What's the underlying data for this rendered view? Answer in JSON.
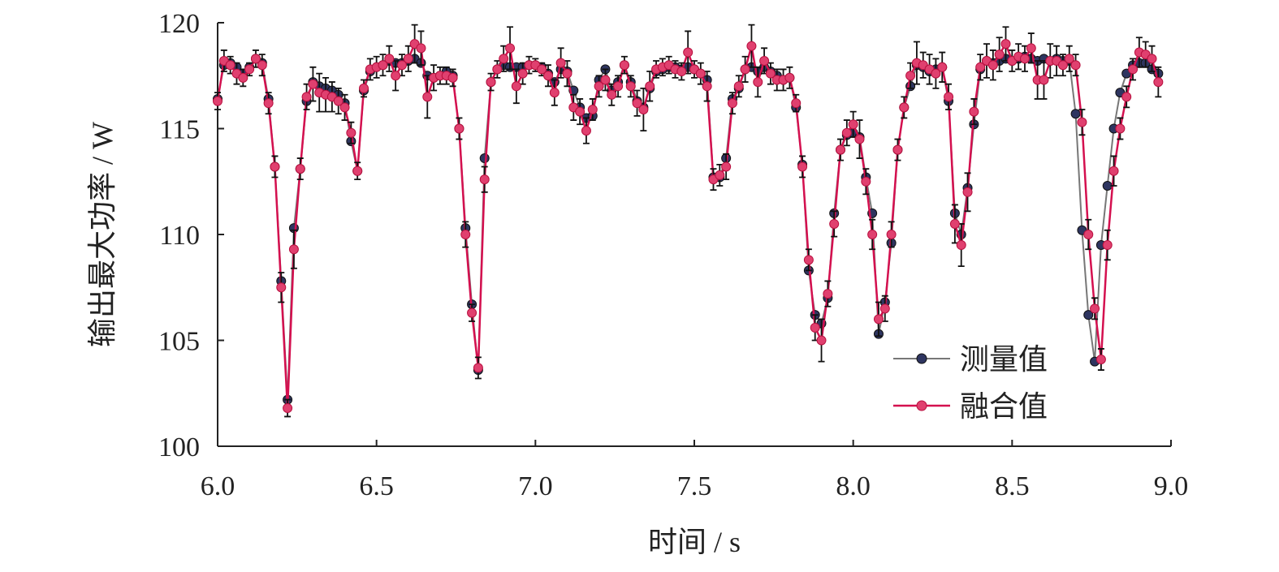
{
  "chart_data": {
    "type": "line",
    "x_label": "时间 / s",
    "y_label": "输出最大功率 / W",
    "xlim": [
      6,
      9
    ],
    "ylim": [
      100,
      120
    ],
    "xticks": [
      {
        "value": 6,
        "label": "6.0"
      },
      {
        "value": 6.5,
        "label": "6.5"
      },
      {
        "value": 7,
        "label": "7.0"
      },
      {
        "value": 7.5,
        "label": "7.5"
      },
      {
        "value": 8,
        "label": "8.0"
      },
      {
        "value": 8.5,
        "label": "8.5"
      },
      {
        "value": 9,
        "label": "9.0"
      }
    ],
    "yticks": [
      100,
      105,
      110,
      115,
      120
    ],
    "grid": false,
    "legend": "lower right",
    "x": [
      6.0,
      6.02,
      6.04,
      6.06,
      6.08,
      6.1,
      6.12,
      6.14,
      6.16,
      6.18,
      6.2,
      6.22,
      6.24,
      6.26,
      6.28,
      6.3,
      6.32,
      6.34,
      6.36,
      6.38,
      6.4,
      6.42,
      6.44,
      6.46,
      6.48,
      6.5,
      6.52,
      6.54,
      6.56,
      6.58,
      6.6,
      6.62,
      6.64,
      6.66,
      6.68,
      6.7,
      6.72,
      6.74,
      6.76,
      6.78,
      6.8,
      6.82,
      6.84,
      6.86,
      6.88,
      6.9,
      6.92,
      6.94,
      6.96,
      6.98,
      7.0,
      7.02,
      7.04,
      7.06,
      7.08,
      7.1,
      7.12,
      7.14,
      7.16,
      7.18,
      7.2,
      7.22,
      7.24,
      7.26,
      7.28,
      7.3,
      7.32,
      7.34,
      7.36,
      7.38,
      7.4,
      7.42,
      7.44,
      7.46,
      7.48,
      7.5,
      7.52,
      7.54,
      7.56,
      7.58,
      7.6,
      7.62,
      7.64,
      7.66,
      7.68,
      7.7,
      7.72,
      7.74,
      7.76,
      7.78,
      7.8,
      7.82,
      7.84,
      7.86,
      7.88,
      7.9,
      7.92,
      7.94,
      7.96,
      7.98,
      8.0,
      8.02,
      8.04,
      8.06,
      8.08,
      8.1,
      8.12,
      8.14,
      8.16,
      8.18,
      8.2,
      8.22,
      8.24,
      8.26,
      8.28,
      8.3,
      8.32,
      8.34,
      8.36,
      8.38,
      8.4,
      8.42,
      8.44,
      8.46,
      8.48,
      8.5,
      8.52,
      8.54,
      8.56,
      8.58,
      8.6,
      8.62,
      8.64,
      8.66,
      8.68,
      8.7,
      8.72,
      8.74,
      8.76,
      8.78,
      8.8,
      8.82,
      8.84,
      8.86,
      8.88,
      8.9,
      8.92,
      8.94,
      8.96
    ],
    "series": [
      {
        "name": "测量值",
        "color": "#2e3560",
        "line_color": "#777777",
        "values": [
          116.4,
          118.0,
          118.1,
          117.9,
          117.6,
          117.9,
          118.3,
          118.1,
          116.4,
          113.2,
          107.8,
          102.2,
          110.3,
          113.1,
          116.3,
          117.2,
          117.0,
          116.9,
          116.8,
          116.6,
          116.2,
          114.4,
          113.0,
          116.8,
          117.7,
          117.9,
          118.0,
          118.2,
          118.1,
          118.1,
          118.2,
          118.3,
          118.1,
          117.5,
          117.4,
          117.5,
          117.7,
          117.5,
          115.0,
          110.3,
          106.7,
          103.6,
          113.6,
          117.2,
          117.8,
          118.0,
          117.9,
          117.9,
          117.9,
          118.0,
          118.0,
          117.9,
          117.6,
          117.2,
          117.8,
          117.7,
          116.8,
          116.0,
          115.5,
          115.6,
          117.3,
          117.8,
          116.8,
          117.2,
          118.0,
          117.2,
          116.3,
          116.0,
          116.9,
          117.7,
          117.8,
          117.9,
          117.9,
          117.8,
          117.9,
          117.8,
          117.6,
          117.3,
          112.7,
          112.7,
          113.6,
          116.4,
          116.9,
          117.8,
          117.9,
          117.7,
          117.9,
          117.7,
          117.5,
          117.3,
          117.4,
          116.0,
          113.3,
          108.3,
          106.2,
          105.8,
          107.0,
          111.0,
          114.0,
          114.7,
          114.8,
          114.6,
          112.7,
          111.0,
          105.3,
          106.8,
          109.6,
          114.0,
          116.0,
          117.0,
          118.0,
          117.9,
          117.7,
          117.8,
          117.9,
          116.3,
          111.0,
          110.0,
          112.2,
          115.2,
          117.8,
          118.2,
          118.1,
          118.2,
          118.3,
          118.2,
          118.3,
          118.4,
          118.3,
          118.2,
          118.3,
          118.2,
          118.3,
          118.2,
          118.2,
          115.7,
          110.2,
          106.2,
          104.0,
          109.5,
          112.3,
          115.0,
          116.7,
          117.6,
          118.0,
          118.1,
          118.1,
          117.8,
          117.6
        ]
      },
      {
        "name": "融合值",
        "color": "#e0406f",
        "line_color": "#d4104f",
        "values": [
          116.3,
          118.2,
          118.0,
          117.6,
          117.4,
          117.8,
          118.3,
          118.0,
          116.2,
          113.2,
          107.5,
          101.8,
          109.3,
          113.1,
          116.5,
          117.1,
          116.7,
          116.6,
          116.5,
          116.3,
          116.0,
          114.8,
          113.0,
          116.9,
          117.8,
          117.9,
          118.0,
          118.3,
          117.5,
          118.0,
          118.3,
          119.0,
          118.8,
          116.5,
          117.4,
          117.5,
          117.5,
          117.4,
          115.0,
          110.0,
          106.3,
          103.7,
          112.6,
          117.2,
          117.8,
          118.3,
          118.8,
          117.0,
          117.6,
          118.0,
          118.0,
          117.8,
          117.5,
          116.7,
          118.1,
          117.6,
          116.0,
          115.8,
          114.9,
          115.9,
          117.0,
          117.3,
          116.6,
          117.0,
          118.0,
          117.0,
          116.2,
          115.9,
          117.0,
          117.8,
          117.9,
          118.0,
          117.8,
          117.7,
          118.6,
          117.8,
          117.6,
          117.0,
          112.6,
          112.8,
          113.2,
          116.2,
          117.0,
          117.8,
          118.9,
          117.2,
          118.2,
          117.6,
          117.3,
          117.3,
          117.4,
          116.2,
          113.2,
          108.8,
          105.6,
          105.0,
          107.2,
          110.5,
          114.0,
          114.8,
          115.2,
          114.5,
          112.5,
          110.0,
          106.0,
          106.5,
          110.0,
          114.0,
          116.0,
          117.5,
          118.1,
          118.0,
          117.8,
          117.6,
          117.9,
          116.5,
          110.5,
          109.5,
          112.0,
          115.8,
          117.9,
          118.2,
          118.0,
          118.5,
          119.0,
          118.2,
          118.4,
          118.3,
          118.8,
          117.3,
          117.3,
          118.2,
          118.2,
          118.0,
          118.3,
          118.0,
          115.3,
          110.0,
          106.5,
          104.1,
          109.5,
          113.0,
          115.0,
          116.5,
          117.8,
          118.6,
          118.5,
          118.3,
          117.2
        ],
        "errors": [
          0.4,
          0.5,
          0.4,
          0.5,
          0.4,
          0.3,
          0.4,
          0.5,
          0.5,
          0.5,
          0.7,
          0.4,
          0.9,
          0.5,
          0.6,
          0.8,
          0.9,
          0.8,
          0.7,
          0.6,
          0.6,
          0.5,
          0.4,
          0.4,
          0.5,
          0.5,
          0.5,
          0.6,
          0.7,
          0.5,
          0.6,
          0.9,
          0.8,
          1.0,
          0.6,
          0.4,
          0.4,
          0.4,
          0.5,
          0.6,
          0.4,
          0.5,
          0.6,
          0.4,
          0.4,
          0.6,
          1.0,
          0.8,
          0.5,
          0.4,
          0.3,
          0.3,
          0.5,
          0.6,
          0.7,
          0.6,
          0.6,
          0.6,
          0.6,
          0.5,
          0.5,
          0.5,
          0.5,
          0.5,
          0.4,
          0.5,
          0.6,
          1.0,
          0.7,
          0.4,
          0.4,
          0.4,
          0.4,
          0.4,
          1.0,
          0.4,
          0.5,
          0.7,
          0.5,
          0.5,
          0.6,
          0.5,
          0.5,
          0.6,
          1.0,
          0.7,
          0.6,
          0.5,
          0.5,
          0.5,
          0.5,
          0.4,
          0.5,
          0.5,
          0.6,
          1.0,
          0.6,
          0.6,
          0.5,
          0.6,
          0.6,
          0.9,
          0.6,
          0.7,
          0.8,
          0.6,
          0.6,
          0.5,
          0.5,
          0.6,
          1.0,
          0.6,
          0.7,
          0.7,
          0.7,
          0.6,
          0.9,
          1.0,
          0.9,
          0.6,
          0.6,
          0.8,
          0.7,
          0.8,
          0.8,
          0.5,
          0.6,
          0.6,
          0.7,
          0.9,
          0.9,
          0.8,
          0.7,
          0.5,
          0.6,
          0.5,
          0.6,
          0.7,
          0.5,
          0.5,
          0.7,
          0.7,
          0.5,
          0.5,
          0.5,
          0.7,
          0.6,
          0.6,
          0.7
        ]
      }
    ]
  }
}
